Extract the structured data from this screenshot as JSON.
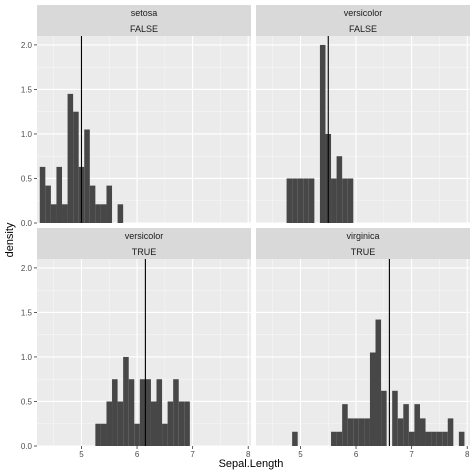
{
  "chart_data": {
    "type": "histogram",
    "x_axis_label": "Sepal.Length",
    "y_axis_label": "density",
    "x_ticks": [
      5,
      6,
      7,
      8
    ],
    "y_ticks": [
      "0.0",
      "0.5",
      "1.0",
      "1.5",
      "2.0"
    ],
    "xlim": [
      4.2,
      8.05
    ],
    "ylim": [
      0,
      2.1
    ],
    "bin_width": 0.1,
    "grid": true,
    "bar_color": "#474747",
    "panel_background": "#ebebeb",
    "strip_background": "#d9d9d9",
    "panels": [
      {
        "strip_top": "setosa",
        "strip_bottom": "FALSE",
        "mean_line": 5.0,
        "bins": [
          {
            "x": 4.3,
            "density": 0.63
          },
          {
            "x": 4.4,
            "density": 0.42
          },
          {
            "x": 4.5,
            "density": 0.21
          },
          {
            "x": 4.6,
            "density": 0.63
          },
          {
            "x": 4.7,
            "density": 0.21
          },
          {
            "x": 4.8,
            "density": 1.45
          },
          {
            "x": 4.9,
            "density": 1.25
          },
          {
            "x": 5.0,
            "density": 0.63
          },
          {
            "x": 5.1,
            "density": 1.05
          },
          {
            "x": 5.2,
            "density": 0.42
          },
          {
            "x": 5.3,
            "density": 0.21
          },
          {
            "x": 5.4,
            "density": 0.21
          },
          {
            "x": 5.5,
            "density": 0.42
          },
          {
            "x": 5.7,
            "density": 0.21
          }
        ]
      },
      {
        "strip_top": "versicolor",
        "strip_bottom": "FALSE",
        "mean_line": 5.5,
        "bins": [
          {
            "x": 4.8,
            "density": 0.5
          },
          {
            "x": 4.9,
            "density": 0.5
          },
          {
            "x": 5.0,
            "density": 0.5
          },
          {
            "x": 5.1,
            "density": 0.5
          },
          {
            "x": 5.2,
            "density": 0.5
          },
          {
            "x": 5.4,
            "density": 2.0
          },
          {
            "x": 5.5,
            "density": 1.0
          },
          {
            "x": 5.6,
            "density": 0.5
          },
          {
            "x": 5.7,
            "density": 0.75
          },
          {
            "x": 5.8,
            "density": 0.5
          },
          {
            "x": 5.9,
            "density": 0.5
          }
        ]
      },
      {
        "strip_top": "versicolor",
        "strip_bottom": "TRUE",
        "mean_line": 6.15,
        "bins": [
          {
            "x": 5.3,
            "density": 0.25
          },
          {
            "x": 5.4,
            "density": 0.25
          },
          {
            "x": 5.5,
            "density": 0.5
          },
          {
            "x": 5.6,
            "density": 0.75
          },
          {
            "x": 5.7,
            "density": 0.5
          },
          {
            "x": 5.8,
            "density": 1.0
          },
          {
            "x": 5.9,
            "density": 0.75
          },
          {
            "x": 6.0,
            "density": 0.25
          },
          {
            "x": 6.1,
            "density": 0.75
          },
          {
            "x": 6.2,
            "density": 0.75
          },
          {
            "x": 6.3,
            "density": 0.5
          },
          {
            "x": 6.4,
            "density": 0.75
          },
          {
            "x": 6.5,
            "density": 0.25
          },
          {
            "x": 6.6,
            "density": 0.5
          },
          {
            "x": 6.7,
            "density": 0.75
          },
          {
            "x": 6.8,
            "density": 0.5
          },
          {
            "x": 6.9,
            "density": 0.5
          }
        ]
      },
      {
        "strip_top": "virginica",
        "strip_bottom": "TRUE",
        "mean_line": 6.6,
        "bins": [
          {
            "x": 4.9,
            "density": 0.16
          },
          {
            "x": 5.6,
            "density": 0.16
          },
          {
            "x": 5.7,
            "density": 0.16
          },
          {
            "x": 5.8,
            "density": 0.47
          },
          {
            "x": 5.9,
            "density": 0.31
          },
          {
            "x": 6.0,
            "density": 0.31
          },
          {
            "x": 6.1,
            "density": 0.31
          },
          {
            "x": 6.2,
            "density": 0.31
          },
          {
            "x": 6.3,
            "density": 1.05
          },
          {
            "x": 6.4,
            "density": 1.42
          },
          {
            "x": 6.5,
            "density": 0.62
          },
          {
            "x": 6.7,
            "density": 0.62
          },
          {
            "x": 6.8,
            "density": 0.31
          },
          {
            "x": 6.9,
            "density": 0.47
          },
          {
            "x": 7.0,
            "density": 0.16
          },
          {
            "x": 7.1,
            "density": 0.47
          },
          {
            "x": 7.2,
            "density": 0.31
          },
          {
            "x": 7.3,
            "density": 0.16
          },
          {
            "x": 7.4,
            "density": 0.16
          },
          {
            "x": 7.5,
            "density": 0.16
          },
          {
            "x": 7.6,
            "density": 0.16
          },
          {
            "x": 7.7,
            "density": 0.31
          },
          {
            "x": 7.9,
            "density": 0.16
          }
        ]
      }
    ]
  }
}
